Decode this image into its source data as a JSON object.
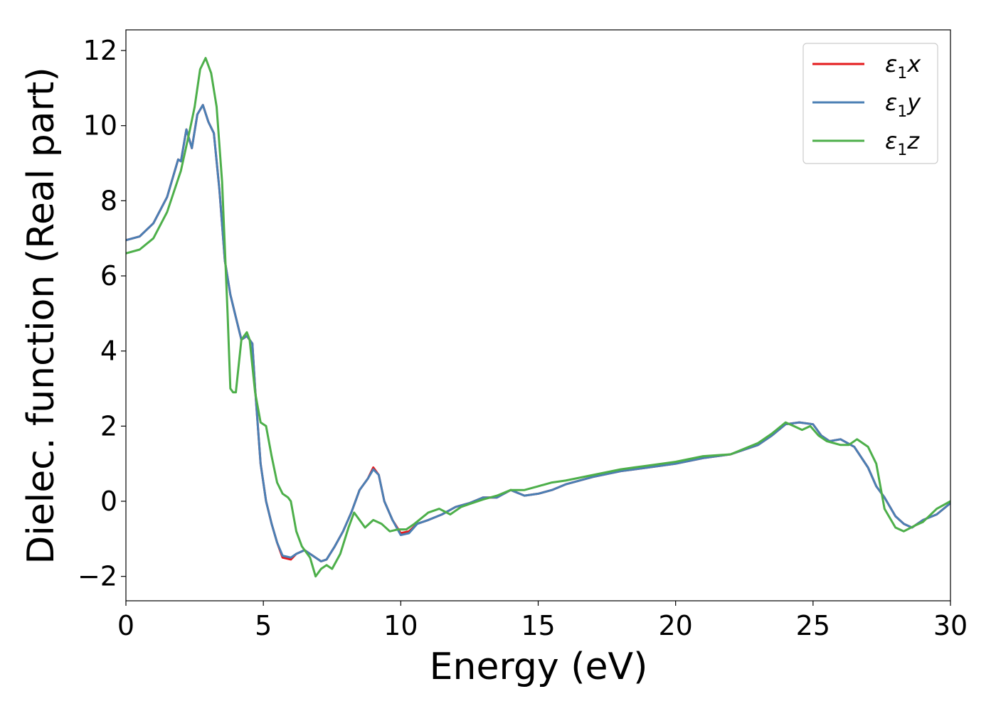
{
  "chart_data": {
    "type": "line",
    "title": "",
    "xlabel": "Energy (eV)",
    "ylabel": "Dielec. function (Real part)",
    "xlim": [
      0,
      30
    ],
    "ylim": [
      -2.65,
      12.55
    ],
    "xticks": [
      0,
      5,
      10,
      15,
      20,
      25,
      30
    ],
    "yticks": [
      -2,
      0,
      2,
      4,
      6,
      8,
      10,
      12
    ],
    "xtick_labels": [
      "0",
      "5",
      "10",
      "15",
      "20",
      "25",
      "30"
    ],
    "ytick_labels": [
      "−2",
      "0",
      "2",
      "4",
      "6",
      "8",
      "10",
      "12"
    ],
    "grid": false,
    "legend": {
      "placement": "top-right"
    },
    "series": [
      {
        "name": "ε₁x",
        "legend_base": "ε",
        "legend_sub": "1",
        "legend_suffix": "x",
        "color": "#e41a1c",
        "x": [
          0,
          0.5,
          1.0,
          1.5,
          1.9,
          2.0,
          2.2,
          2.4,
          2.6,
          2.8,
          3.0,
          3.2,
          3.4,
          3.6,
          3.8,
          4.0,
          4.2,
          4.4,
          4.6,
          4.7,
          4.9,
          5.1,
          5.3,
          5.5,
          5.7,
          6.0,
          6.2,
          6.5,
          6.8,
          7.1,
          7.3,
          7.6,
          7.9,
          8.2,
          8.5,
          8.8,
          9.0,
          9.2,
          9.4,
          9.7,
          10.0,
          10.3,
          10.6,
          11.0,
          11.5,
          12.0,
          12.5,
          13.0,
          13.5,
          14.0,
          14.5,
          15.0,
          15.5,
          16.0,
          17.0,
          18.0,
          19.0,
          20.0,
          21.0,
          22.0,
          23.0,
          23.5,
          24.0,
          24.5,
          25.0,
          25.3,
          25.6,
          26.0,
          26.5,
          27.0,
          27.3,
          27.6,
          28.0,
          28.3,
          28.6,
          29.0,
          29.5,
          30.0
        ],
        "values": [
          6.95,
          7.05,
          7.4,
          8.1,
          9.1,
          9.05,
          9.9,
          9.4,
          10.3,
          10.55,
          10.1,
          9.8,
          8.3,
          6.4,
          5.5,
          4.9,
          4.3,
          4.4,
          4.2,
          3.0,
          1.0,
          0.0,
          -0.6,
          -1.1,
          -1.5,
          -1.55,
          -1.4,
          -1.3,
          -1.45,
          -1.6,
          -1.55,
          -1.2,
          -0.8,
          -0.3,
          0.3,
          0.6,
          0.9,
          0.7,
          0.0,
          -0.5,
          -0.85,
          -0.8,
          -0.6,
          -0.5,
          -0.35,
          -0.15,
          -0.05,
          0.1,
          0.1,
          0.3,
          0.15,
          0.2,
          0.3,
          0.45,
          0.65,
          0.8,
          0.9,
          1.0,
          1.15,
          1.25,
          1.5,
          1.75,
          2.05,
          2.1,
          2.05,
          1.75,
          1.6,
          1.65,
          1.45,
          0.9,
          0.4,
          0.1,
          -0.4,
          -0.6,
          -0.7,
          -0.5,
          -0.35,
          -0.05
        ]
      },
      {
        "name": "ε₁y",
        "legend_base": "ε",
        "legend_sub": "1",
        "legend_suffix": "y",
        "color": "#4a7fb4",
        "x": [
          0,
          0.5,
          1.0,
          1.5,
          1.9,
          2.0,
          2.2,
          2.4,
          2.6,
          2.8,
          3.0,
          3.2,
          3.4,
          3.6,
          3.8,
          4.0,
          4.2,
          4.4,
          4.6,
          4.7,
          4.9,
          5.1,
          5.3,
          5.5,
          5.7,
          6.0,
          6.2,
          6.5,
          6.8,
          7.1,
          7.3,
          7.6,
          7.9,
          8.2,
          8.5,
          8.8,
          9.0,
          9.2,
          9.4,
          9.7,
          10.0,
          10.3,
          10.6,
          11.0,
          11.5,
          12.0,
          12.5,
          13.0,
          13.5,
          14.0,
          14.5,
          15.0,
          15.5,
          16.0,
          17.0,
          18.0,
          19.0,
          20.0,
          21.0,
          22.0,
          23.0,
          23.5,
          24.0,
          24.5,
          25.0,
          25.3,
          25.6,
          26.0,
          26.5,
          27.0,
          27.3,
          27.6,
          28.0,
          28.3,
          28.6,
          29.0,
          29.5,
          30.0
        ],
        "values": [
          6.95,
          7.05,
          7.4,
          8.1,
          9.1,
          9.05,
          9.9,
          9.4,
          10.3,
          10.55,
          10.1,
          9.8,
          8.3,
          6.4,
          5.5,
          4.9,
          4.3,
          4.4,
          4.2,
          3.0,
          1.0,
          0.0,
          -0.6,
          -1.1,
          -1.45,
          -1.5,
          -1.4,
          -1.3,
          -1.45,
          -1.6,
          -1.55,
          -1.2,
          -0.8,
          -0.3,
          0.3,
          0.6,
          0.85,
          0.7,
          0.0,
          -0.5,
          -0.9,
          -0.85,
          -0.6,
          -0.5,
          -0.35,
          -0.15,
          -0.05,
          0.1,
          0.1,
          0.3,
          0.15,
          0.2,
          0.3,
          0.45,
          0.65,
          0.8,
          0.9,
          1.0,
          1.15,
          1.25,
          1.5,
          1.75,
          2.05,
          2.1,
          2.05,
          1.75,
          1.6,
          1.65,
          1.45,
          0.9,
          0.4,
          0.1,
          -0.4,
          -0.6,
          -0.7,
          -0.5,
          -0.35,
          -0.05
        ]
      },
      {
        "name": "ε₁z",
        "legend_base": "ε",
        "legend_sub": "1",
        "legend_suffix": "z",
        "color": "#4daf4a",
        "x": [
          0,
          0.5,
          1.0,
          1.5,
          2.0,
          2.3,
          2.5,
          2.7,
          2.9,
          3.1,
          3.3,
          3.5,
          3.7,
          3.8,
          3.9,
          4.0,
          4.2,
          4.4,
          4.5,
          4.7,
          4.9,
          5.1,
          5.3,
          5.5,
          5.7,
          5.9,
          6.0,
          6.2,
          6.4,
          6.7,
          6.9,
          7.1,
          7.3,
          7.5,
          7.8,
          8.1,
          8.3,
          8.5,
          8.7,
          9.0,
          9.3,
          9.6,
          9.9,
          10.2,
          10.5,
          11.0,
          11.4,
          11.8,
          12.2,
          12.6,
          13.0,
          13.5,
          14.0,
          14.5,
          15.0,
          15.5,
          16.0,
          17.0,
          18.0,
          19.0,
          20.0,
          21.0,
          22.0,
          23.0,
          23.5,
          24.0,
          24.3,
          24.6,
          24.9,
          25.2,
          25.5,
          26.0,
          26.3,
          26.6,
          27.0,
          27.3,
          27.6,
          28.0,
          28.3,
          28.7,
          29.0,
          29.5,
          30.0
        ],
        "values": [
          6.6,
          6.7,
          7.0,
          7.7,
          8.8,
          9.8,
          10.5,
          11.5,
          11.8,
          11.4,
          10.5,
          8.5,
          5.0,
          3.0,
          2.9,
          2.9,
          4.3,
          4.5,
          4.3,
          2.9,
          2.1,
          2.0,
          1.2,
          0.5,
          0.2,
          0.1,
          0.0,
          -0.8,
          -1.2,
          -1.5,
          -2.0,
          -1.8,
          -1.7,
          -1.8,
          -1.4,
          -0.7,
          -0.3,
          -0.5,
          -0.7,
          -0.5,
          -0.6,
          -0.8,
          -0.75,
          -0.75,
          -0.6,
          -0.3,
          -0.2,
          -0.35,
          -0.15,
          -0.05,
          0.05,
          0.15,
          0.3,
          0.3,
          0.4,
          0.5,
          0.55,
          0.7,
          0.85,
          0.95,
          1.05,
          1.2,
          1.25,
          1.55,
          1.8,
          2.1,
          2.0,
          1.9,
          2.0,
          1.75,
          1.6,
          1.5,
          1.5,
          1.65,
          1.45,
          1.0,
          -0.2,
          -0.7,
          -0.8,
          -0.65,
          -0.55,
          -0.2,
          0.0
        ]
      }
    ]
  }
}
